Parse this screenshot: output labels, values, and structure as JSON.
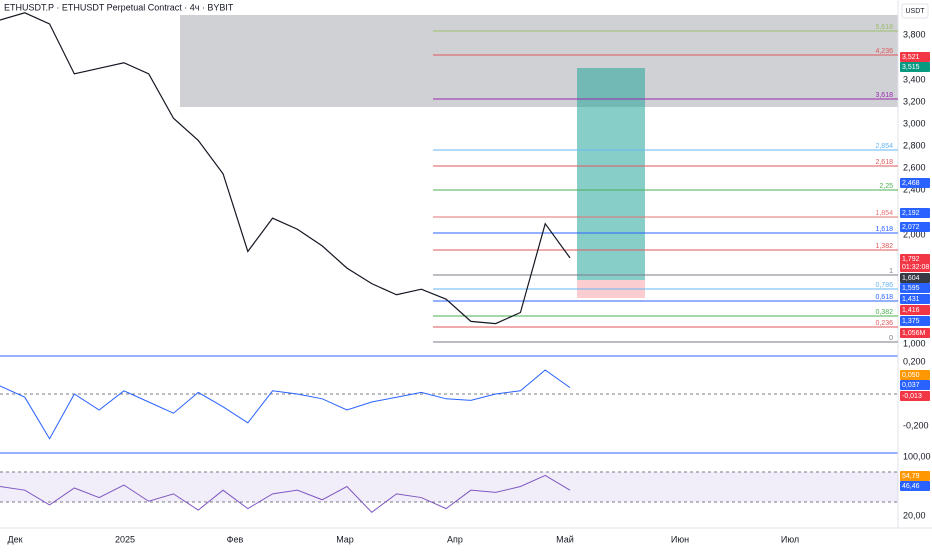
{
  "header": {
    "title": "ETHUSDT.P · ETHUSDT Perpetual Contract · 4ч · BYBIT",
    "currency": "USDT"
  },
  "price_axis": [
    "3,800",
    "3,600",
    "3,400",
    "3,200",
    "3,000",
    "2,800",
    "2,600",
    "2,400",
    "2,000",
    "1,000"
  ],
  "fib_levels": [
    {
      "label": "5,618",
      "color": "#9bbf6a"
    },
    {
      "label": "4,236",
      "color": "#e0585b"
    },
    {
      "label": "3,618",
      "color": "#9c27b0"
    },
    {
      "label": "2,854",
      "color": "#64b5f6"
    },
    {
      "label": "2,618",
      "color": "#e0585b"
    },
    {
      "label": "2,25",
      "color": "#4caf50"
    },
    {
      "label": "1,854",
      "color": "#e57373"
    },
    {
      "label": "1,618",
      "color": "#2962ff"
    },
    {
      "label": "1,382",
      "color": "#e0585b"
    },
    {
      "label": "1",
      "color": "#787b86"
    },
    {
      "label": "0,786",
      "color": "#64b5f6"
    },
    {
      "label": "0,618",
      "color": "#2962ff"
    },
    {
      "label": "0,382",
      "color": "#4caf50"
    },
    {
      "label": "0,236",
      "color": "#e0585b"
    },
    {
      "label": "0",
      "color": "#787b86"
    }
  ],
  "badges": [
    {
      "text": "3,521",
      "color": "#f23645"
    },
    {
      "text": "3,515",
      "color": "#089981"
    },
    {
      "text": "2,468",
      "color": "#2962ff"
    },
    {
      "text": "2,192",
      "color": "#2962ff"
    },
    {
      "text": "2,072",
      "color": "#2962ff"
    },
    {
      "text": "1,792",
      "color": "#f23645"
    },
    {
      "text": "01:32:08",
      "color": "#f23645"
    },
    {
      "text": "1,604",
      "color": "#363a45"
    },
    {
      "text": "1,595",
      "color": "#2962ff"
    },
    {
      "text": "1,431",
      "color": "#2962ff"
    },
    {
      "text": "1,416",
      "color": "#f23645"
    },
    {
      "text": "1,375",
      "color": "#2962ff"
    },
    {
      "text": "1,056M",
      "color": "#f23645"
    }
  ],
  "price_path": [
    3935,
    4000,
    3900,
    3450,
    3500,
    3550,
    3450,
    3050,
    2850,
    2550,
    1850,
    2150,
    2050,
    1900,
    1700,
    1560,
    1460,
    1510,
    1420,
    1220,
    1200,
    1300,
    2100,
    1792
  ],
  "macd": {
    "axis": [
      "0,200",
      "-0,200"
    ],
    "badges": [
      {
        "text": "0,050",
        "color": "#ff9800"
      },
      {
        "text": "0,037",
        "color": "#2962ff"
      },
      {
        "text": "-0,013",
        "color": "#f23645"
      }
    ],
    "values": [
      0.05,
      -0.02,
      -0.28,
      0.0,
      -0.1,
      0.02,
      -0.05,
      -0.12,
      0.01,
      -0.08,
      -0.18,
      0.02,
      0.0,
      -0.03,
      -0.1,
      -0.05,
      -0.02,
      0.01,
      -0.03,
      -0.04,
      0.0,
      0.02,
      0.15,
      0.04
    ]
  },
  "rsi": {
    "axis": [
      "100,00",
      "20,00"
    ],
    "badges": [
      {
        "text": "54,79",
        "color": "#ff9800"
      },
      {
        "text": "46,46",
        "color": "#2962ff"
      }
    ],
    "values": [
      60,
      55,
      35,
      58,
      45,
      62,
      40,
      50,
      28,
      55,
      30,
      50,
      55,
      42,
      60,
      25,
      50,
      45,
      30,
      55,
      52,
      60,
      75,
      55
    ]
  },
  "time_axis": [
    "Дек",
    "2025",
    "Фев",
    "Мар",
    "Апр",
    "Май",
    "Июн",
    "Июл"
  ]
}
